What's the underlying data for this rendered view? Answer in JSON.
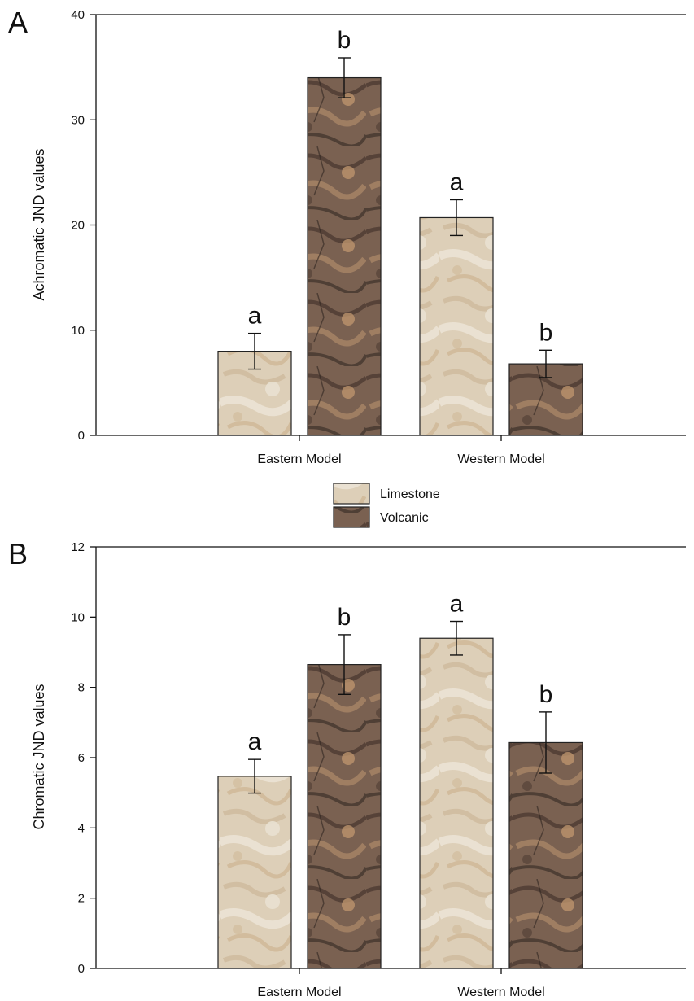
{
  "colors": {
    "limestone": "#ddcfb8",
    "volcanic": "#7a6151",
    "axis": "#111111"
  },
  "legend": {
    "limestone_label": "Limestone",
    "volcanic_label": "Volcanic"
  },
  "chart_data": [
    {
      "type": "bar",
      "panel": "A",
      "ylabel": "Achromatic JND values",
      "xlabel": "",
      "categories": [
        "Eastern Model",
        "Western Model"
      ],
      "ylim": [
        0,
        40
      ],
      "yticks": [
        0,
        10,
        20,
        30,
        40
      ],
      "series": [
        {
          "name": "Limestone",
          "values": [
            8.0,
            20.7
          ],
          "errors": [
            1.7,
            1.7
          ],
          "letters": [
            "a",
            "a"
          ]
        },
        {
          "name": "Volcanic",
          "values": [
            34.0,
            6.8
          ],
          "errors": [
            1.9,
            1.3
          ],
          "letters": [
            "b",
            "b"
          ]
        }
      ]
    },
    {
      "type": "bar",
      "panel": "B",
      "ylabel": "Chromatic JND values",
      "xlabel": "",
      "categories": [
        "Eastern Model",
        "Western Model"
      ],
      "ylim": [
        0,
        12
      ],
      "yticks": [
        0,
        2,
        4,
        6,
        8,
        10,
        12
      ],
      "series": [
        {
          "name": "Limestone",
          "values": [
            5.47,
            9.4
          ],
          "errors": [
            0.48,
            0.48
          ],
          "letters": [
            "a",
            "a"
          ]
        },
        {
          "name": "Volcanic",
          "values": [
            8.65,
            6.43
          ],
          "errors": [
            0.85,
            0.87
          ],
          "letters": [
            "b",
            "b"
          ]
        }
      ]
    }
  ]
}
